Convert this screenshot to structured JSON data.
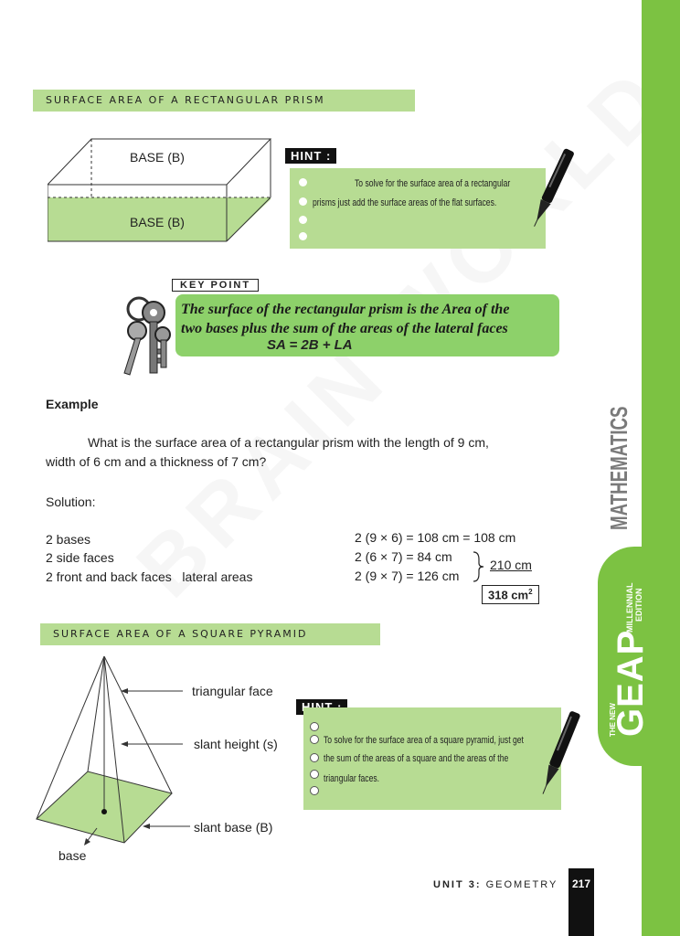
{
  "watermark": "BRAIN WORLD",
  "sidebar": {
    "subject": "MATHEMATICS",
    "brand_small": "THE NEW",
    "brand": "GEAP",
    "edition_line1": "MILLENNIAL",
    "edition_line2": "EDITION"
  },
  "section1": {
    "heading": "Surface Area of a Rectangular Prism",
    "prism_top_label": "BASE (B)",
    "prism_bottom_label": "BASE (B)",
    "hint_label": "HINT :",
    "hint_line1": "To solve for the surface area of a rectangular",
    "hint_line2": "prisms just add the surface areas of the flat surfaces."
  },
  "keypoint": {
    "label": "KEY POINT",
    "line1": "The surface of the rectangular prism is the Area of the",
    "line2": "two bases plus the sum of the areas of the lateral faces",
    "formula": "SA = 2B + LA"
  },
  "example": {
    "heading": "Example",
    "question_line1": "What is the surface area of a rectangular prism with the length of 9 cm,",
    "question_line2": "width of 6 cm and a thickness of 7 cm?",
    "solution_label": "Solution:",
    "rows": [
      {
        "label": "2 bases",
        "calc": "2 (9 × 6) = 108 cm = 108 cm"
      },
      {
        "label": "2 side faces",
        "calc": "2 (6 × 7) = 84 cm"
      },
      {
        "label": "2 front and back faces   lateral areas",
        "calc": "2 (9 × 7) = 126 cm"
      }
    ],
    "lateral_total": "210 cm",
    "answer_value": "318 cm",
    "answer_exp": "2"
  },
  "section2": {
    "heading": "Surface Area of a Square Pyramid",
    "label_triangular_face": "triangular face",
    "label_slant_height": "slant height (s)",
    "label_slant_base": "slant base (B)",
    "label_base": "base",
    "hint_label": "HINT :",
    "hint_line1": "To solve for the surface area of a square pyramid, just get",
    "hint_line2": "the sum of the areas of a square and the areas of the",
    "hint_line3": "triangular faces."
  },
  "footer": {
    "unit": "UNIT 3:",
    "topic": "GEOMETRY",
    "page": "217"
  },
  "colors": {
    "accent_green": "#7cc242",
    "light_green": "#b7dc93",
    "keypoint_green": "#8dd16a"
  }
}
